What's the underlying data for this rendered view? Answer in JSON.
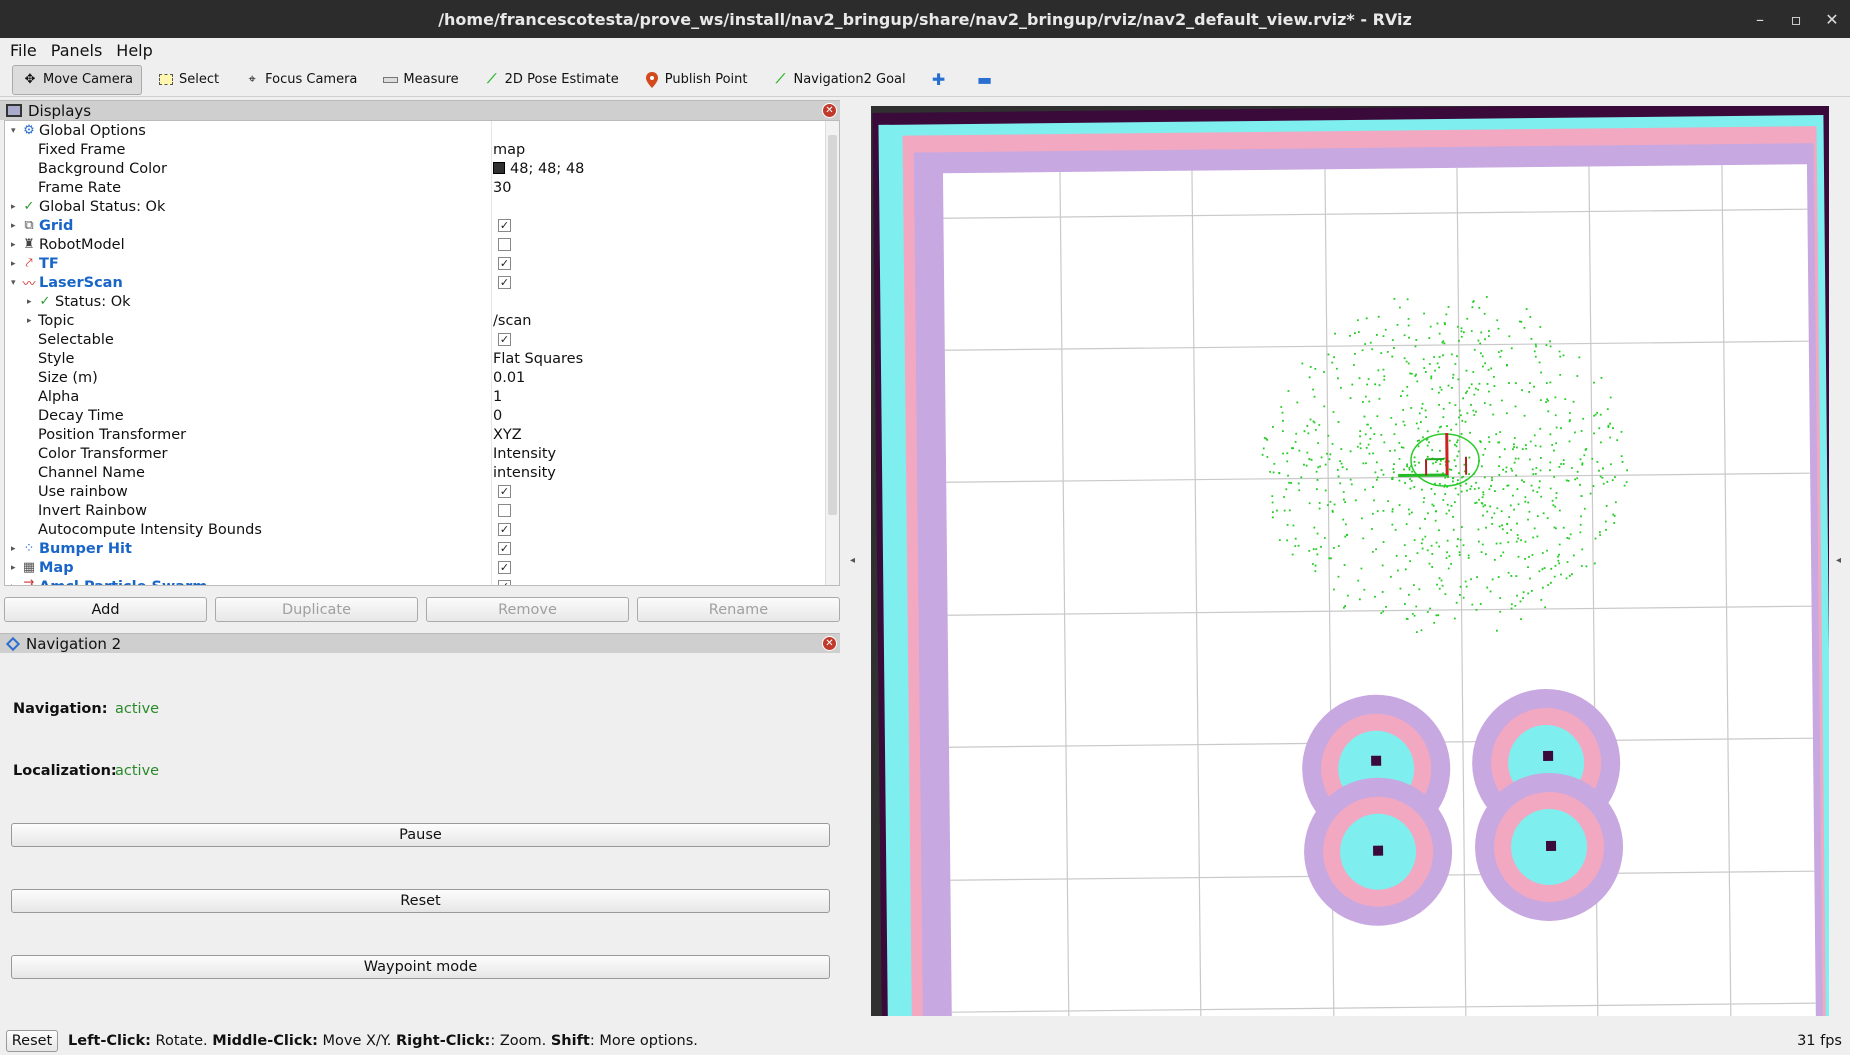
{
  "window": {
    "title": "/home/francescotesta/prove_ws/install/nav2_bringup/share/nav2_bringup/rviz/nav2_default_view.rviz* - RViz"
  },
  "menu": [
    "File",
    "Panels",
    "Help"
  ],
  "toolbar": [
    {
      "label": "Move Camera",
      "icon": "move-camera-icon",
      "active": true
    },
    {
      "label": "Select",
      "icon": "select-icon"
    },
    {
      "label": "Focus Camera",
      "icon": "focus-camera-icon"
    },
    {
      "label": "Measure",
      "icon": "measure-icon"
    },
    {
      "label": "2D Pose Estimate",
      "icon": "pose-estimate-icon"
    },
    {
      "label": "Publish Point",
      "icon": "publish-point-icon"
    },
    {
      "label": "Navigation2 Goal",
      "icon": "nav-goal-icon"
    }
  ],
  "displays": {
    "title": "Displays",
    "rows": [
      {
        "name": "Global Options",
        "depth": 0,
        "arrow": "down",
        "icon": "gear-icon"
      },
      {
        "name": "Fixed Frame",
        "depth": 1,
        "value": "map"
      },
      {
        "name": "Background Color",
        "depth": 1,
        "value": "48; 48; 48",
        "swatch": "#303030"
      },
      {
        "name": "Frame Rate",
        "depth": 1,
        "value": "30"
      },
      {
        "name": "Global Status: Ok",
        "depth": 0,
        "arrow": "right",
        "icon": "check-icon"
      },
      {
        "name": "Grid",
        "depth": 0,
        "arrow": "right",
        "icon": "grid-icon",
        "highlight": true,
        "checked": true
      },
      {
        "name": "RobotModel",
        "depth": 0,
        "arrow": "right",
        "icon": "robot-icon",
        "checked": false
      },
      {
        "name": "TF",
        "depth": 0,
        "arrow": "right",
        "icon": "tf-icon",
        "highlight": true,
        "checked": true
      },
      {
        "name": "LaserScan",
        "depth": 0,
        "arrow": "down",
        "icon": "laser-icon",
        "highlight": true,
        "checked": true
      },
      {
        "name": "Status: Ok",
        "depth": 1,
        "arrow": "right",
        "icon": "check-icon"
      },
      {
        "name": "Topic",
        "depth": 1,
        "arrow": "right",
        "value": "/scan"
      },
      {
        "name": "Selectable",
        "depth": 1,
        "checked": true
      },
      {
        "name": "Style",
        "depth": 1,
        "value": "Flat Squares"
      },
      {
        "name": "Size (m)",
        "depth": 1,
        "value": "0.01"
      },
      {
        "name": "Alpha",
        "depth": 1,
        "value": "1"
      },
      {
        "name": "Decay Time",
        "depth": 1,
        "value": "0"
      },
      {
        "name": "Position Transformer",
        "depth": 1,
        "value": "XYZ"
      },
      {
        "name": "Color Transformer",
        "depth": 1,
        "value": "Intensity"
      },
      {
        "name": "Channel Name",
        "depth": 1,
        "value": "intensity"
      },
      {
        "name": "Use rainbow",
        "depth": 1,
        "checked": true
      },
      {
        "name": "Invert Rainbow",
        "depth": 1,
        "checked": false
      },
      {
        "name": "Autocompute Intensity Bounds",
        "depth": 1,
        "checked": true
      },
      {
        "name": "Bumper Hit",
        "depth": 0,
        "arrow": "right",
        "icon": "bumper-icon",
        "highlight": true,
        "checked": true
      },
      {
        "name": "Map",
        "depth": 0,
        "arrow": "right",
        "icon": "map-icon",
        "highlight": true,
        "checked": true
      },
      {
        "name": "Amcl Particle Swarm",
        "depth": 0,
        "arrow": "right",
        "icon": "particles-icon",
        "highlight": true,
        "checked": true
      }
    ],
    "buttons": {
      "add": "Add",
      "duplicate": "Duplicate",
      "remove": "Remove",
      "rename": "Rename"
    }
  },
  "navigation": {
    "title": "Navigation 2",
    "nav_label": "Navigation:",
    "nav_value": "active",
    "loc_label": "Localization:",
    "loc_value": "active",
    "pause": "Pause",
    "reset": "Reset",
    "waypoint": "Waypoint mode"
  },
  "status": {
    "reset": "Reset",
    "hint_parts": [
      {
        "b": "Left-Click:",
        "t": " Rotate. "
      },
      {
        "b": "Middle-Click:",
        "t": " Move X/Y. "
      },
      {
        "b": "Right-Click:",
        "t": ": Zoom. "
      },
      {
        "b": "Shift",
        "t": ": More options."
      }
    ],
    "fps": "31 fps"
  },
  "colors": {
    "background": "#303030",
    "free_space": "#ffffff",
    "inflation_outer": "#c8a8e0",
    "inflation_inner": "#f0a8c0",
    "lethal": "#88f0f0",
    "obstacle": "#3a0a3a",
    "laser": "#22cc22",
    "highlight_text": "#1a66c8"
  }
}
